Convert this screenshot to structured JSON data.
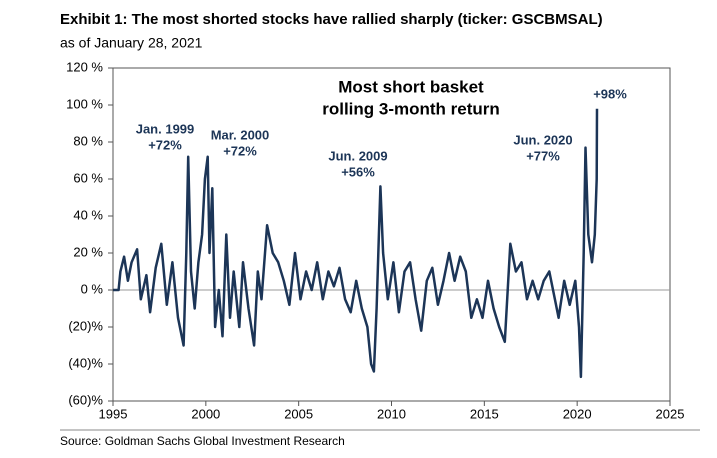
{
  "chart_data": {
    "type": "line",
    "title": "Exhibit 1: The most shorted stocks have rallied sharply (ticker: GSCBMSAL)",
    "subtitle": "as of January 28, 2021",
    "source": "Source: Goldman Sachs Global Investment Research",
    "annotations": [
      "Most short basket",
      "rolling 3-month return",
      "Jan. 1999",
      "+72%",
      "Mar. 2000",
      "+72%",
      "Jun. 2009",
      "+56%",
      "Jun. 2020",
      "+77%",
      "+98%"
    ],
    "color": "#1c3557",
    "x": [
      1995.0,
      1995.3,
      1995.4,
      1995.6,
      1995.8,
      1996.0,
      1996.3,
      1996.5,
      1996.8,
      1997.0,
      1997.3,
      1997.6,
      1997.9,
      1998.2,
      1998.5,
      1998.8,
      1998.95,
      1999.05,
      1999.2,
      1999.4,
      1999.6,
      1999.8,
      1999.95,
      2000.1,
      2000.2,
      2000.35,
      2000.5,
      2000.7,
      2000.9,
      2001.1,
      2001.3,
      2001.5,
      2001.8,
      2002.0,
      2002.3,
      2002.6,
      2002.8,
      2003.0,
      2003.3,
      2003.6,
      2003.9,
      2004.2,
      2004.5,
      2004.8,
      2005.1,
      2005.4,
      2005.7,
      2006.0,
      2006.3,
      2006.6,
      2006.9,
      2007.2,
      2007.5,
      2007.8,
      2008.1,
      2008.4,
      2008.7,
      2008.9,
      2009.05,
      2009.2,
      2009.4,
      2009.55,
      2009.8,
      2010.1,
      2010.4,
      2010.7,
      2011.0,
      2011.3,
      2011.6,
      2011.9,
      2012.2,
      2012.5,
      2012.8,
      2013.1,
      2013.4,
      2013.7,
      2014.0,
      2014.3,
      2014.6,
      2014.9,
      2015.2,
      2015.5,
      2015.8,
      2016.1,
      2016.4,
      2016.7,
      2017.0,
      2017.3,
      2017.6,
      2017.9,
      2018.2,
      2018.5,
      2018.8,
      2019.0,
      2019.3,
      2019.6,
      2019.9,
      2020.1,
      2020.2,
      2020.35,
      2020.45,
      2020.6,
      2020.8,
      2020.95,
      2021.05,
      2021.07
    ],
    "values": [
      0,
      0,
      10,
      18,
      5,
      15,
      22,
      -5,
      8,
      -12,
      12,
      25,
      -8,
      15,
      -15,
      -30,
      20,
      72,
      10,
      -10,
      15,
      30,
      60,
      72,
      20,
      55,
      -20,
      0,
      -25,
      30,
      -15,
      10,
      -20,
      15,
      -10,
      -30,
      10,
      -5,
      35,
      20,
      15,
      5,
      -8,
      20,
      -5,
      10,
      0,
      15,
      -5,
      10,
      2,
      12,
      -5,
      -12,
      5,
      -10,
      -20,
      -40,
      -44,
      -10,
      56,
      20,
      -5,
      15,
      -12,
      10,
      15,
      -5,
      -22,
      5,
      12,
      -8,
      5,
      20,
      5,
      18,
      10,
      -15,
      -5,
      -15,
      5,
      -10,
      -20,
      -28,
      25,
      10,
      15,
      -5,
      5,
      -5,
      5,
      10,
      -5,
      -15,
      5,
      -8,
      5,
      -20,
      -47,
      20,
      77,
      30,
      15,
      30,
      60,
      98
    ],
    "xlim": [
      1995,
      2025
    ],
    "xticks": [
      1995,
      2000,
      2005,
      2010,
      2015,
      2020,
      2025
    ],
    "ylim": [
      -60,
      120
    ],
    "yticks": [
      {
        "value": -60,
        "label": "(60)%"
      },
      {
        "value": -40,
        "label": "(40)%"
      },
      {
        "value": -20,
        "label": "(20)%"
      },
      {
        "value": 0,
        "label": "0 %"
      },
      {
        "value": 20,
        "label": "20 %"
      },
      {
        "value": 40,
        "label": "40 %"
      },
      {
        "value": 60,
        "label": "60 %"
      },
      {
        "value": 80,
        "label": "80 %"
      },
      {
        "value": 100,
        "label": "100 %"
      },
      {
        "value": 120,
        "label": "120 %"
      }
    ]
  }
}
